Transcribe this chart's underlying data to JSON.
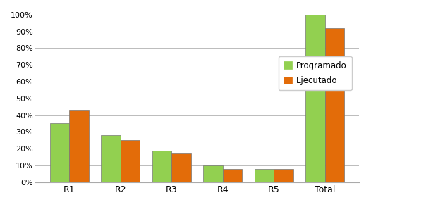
{
  "categories": [
    "R1",
    "R2",
    "R3",
    "R4",
    "R5",
    "Total"
  ],
  "programado": [
    35,
    28,
    19,
    10,
    8,
    100
  ],
  "ejecutado": [
    43,
    25,
    17,
    8,
    8,
    92
  ],
  "color_programado": "#92d050",
  "color_ejecutado": "#e36c09",
  "legend_programado": "Programado",
  "legend_ejecutado": "Ejecutado",
  "ylim": [
    0,
    105
  ],
  "yticks": [
    0,
    10,
    20,
    30,
    40,
    50,
    60,
    70,
    80,
    90,
    100
  ],
  "ylabel_format": "{}%",
  "background_color": "#ffffff",
  "grid_color": "#bbbbbb",
  "bar_width": 0.38,
  "figsize": [
    6.21,
    2.94
  ],
  "dpi": 100
}
